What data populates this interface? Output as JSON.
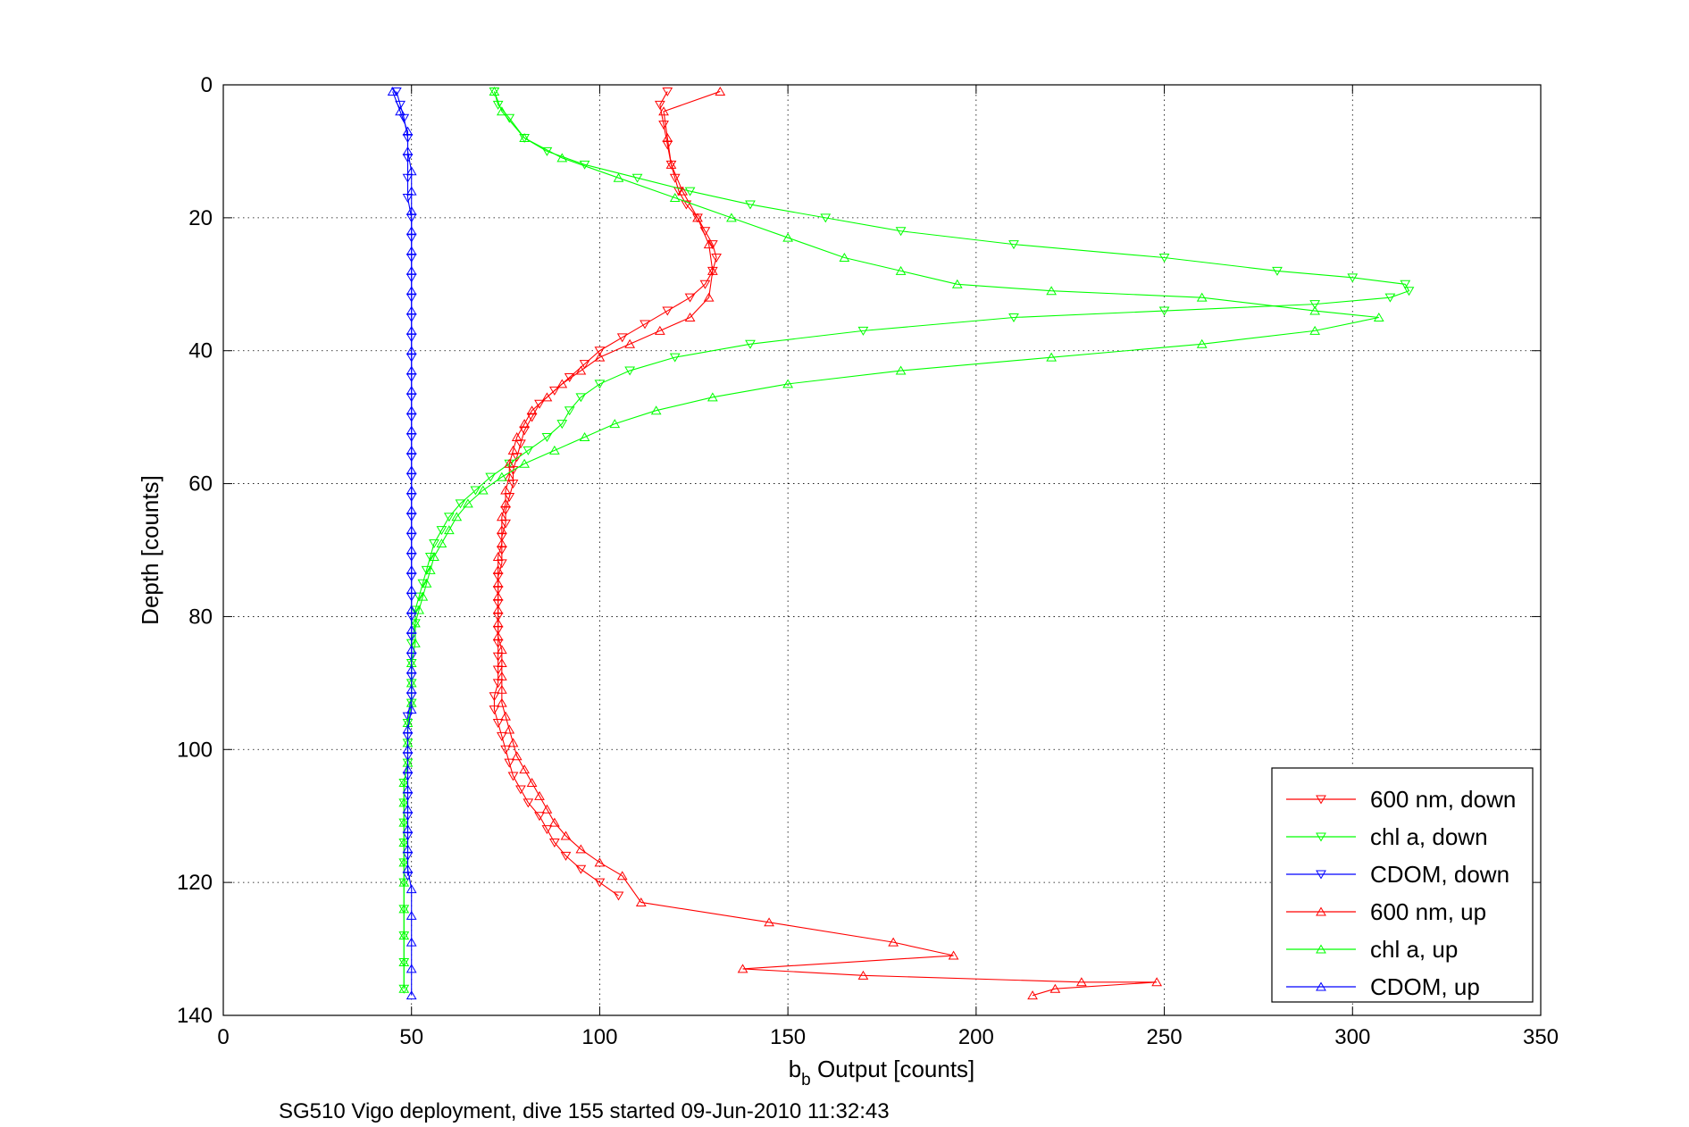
{
  "chart_data": {
    "type": "line",
    "caption": "SG510 Vigo deployment, dive 155 started 09-Jun-2010 11:32:43",
    "xlabel_main": "b",
    "xlabel_sub": "b",
    "xlabel_rest": " Output [counts]",
    "ylabel": "Depth [counts]",
    "xlim": [
      0,
      350
    ],
    "ylim": [
      0,
      140
    ],
    "y_reversed": true,
    "grid": true,
    "legend_placement": "bottom-right",
    "xticks": [
      "0",
      "50",
      "100",
      "150",
      "200",
      "250",
      "300",
      "350"
    ],
    "yticks": [
      "0",
      "20",
      "40",
      "60",
      "80",
      "100",
      "120",
      "140"
    ],
    "colors": {
      "red": "#ff0000",
      "green": "#00ff00",
      "blue": "#0000ff"
    },
    "series": [
      {
        "name": "600 nm, down",
        "color": "#ff0000",
        "marker": "triangle-down",
        "points": [
          [
            118,
            1
          ],
          [
            116,
            3
          ],
          [
            117,
            6
          ],
          [
            118,
            9
          ],
          [
            119,
            12
          ],
          [
            120,
            14
          ],
          [
            121,
            16
          ],
          [
            123,
            18
          ],
          [
            126,
            20
          ],
          [
            128,
            22
          ],
          [
            130,
            24
          ],
          [
            131,
            26
          ],
          [
            130,
            28
          ],
          [
            128,
            30
          ],
          [
            124,
            32
          ],
          [
            118,
            34
          ],
          [
            112,
            36
          ],
          [
            106,
            38
          ],
          [
            100,
            40
          ],
          [
            96,
            42
          ],
          [
            92,
            44
          ],
          [
            88,
            46
          ],
          [
            84,
            48
          ],
          [
            82,
            50
          ],
          [
            80,
            52
          ],
          [
            79,
            54
          ],
          [
            78,
            56
          ],
          [
            77,
            58
          ],
          [
            77,
            60
          ],
          [
            76,
            62
          ],
          [
            75,
            64
          ],
          [
            75,
            66
          ],
          [
            74,
            68
          ],
          [
            74,
            70
          ],
          [
            74,
            72
          ],
          [
            73,
            74
          ],
          [
            73,
            76
          ],
          [
            73,
            78
          ],
          [
            73,
            80
          ],
          [
            73,
            82
          ],
          [
            73,
            84
          ],
          [
            73,
            86
          ],
          [
            73,
            88
          ],
          [
            73,
            90
          ],
          [
            72,
            92
          ],
          [
            72,
            94
          ],
          [
            73,
            96
          ],
          [
            74,
            98
          ],
          [
            75,
            100
          ],
          [
            76,
            102
          ],
          [
            77,
            104
          ],
          [
            79,
            106
          ],
          [
            81,
            108
          ],
          [
            84,
            110
          ],
          [
            86,
            112
          ],
          [
            88,
            114
          ],
          [
            91,
            116
          ],
          [
            95,
            118
          ],
          [
            100,
            120
          ],
          [
            105,
            122
          ]
        ]
      },
      {
        "name": "chl a, down",
        "color": "#00ff00",
        "marker": "triangle-down",
        "points": [
          [
            72,
            1
          ],
          [
            73,
            3
          ],
          [
            76,
            5
          ],
          [
            80,
            8
          ],
          [
            86,
            10
          ],
          [
            96,
            12
          ],
          [
            110,
            14
          ],
          [
            124,
            16
          ],
          [
            140,
            18
          ],
          [
            160,
            20
          ],
          [
            180,
            22
          ],
          [
            210,
            24
          ],
          [
            250,
            26
          ],
          [
            280,
            28
          ],
          [
            300,
            29
          ],
          [
            314,
            30
          ],
          [
            315,
            31
          ],
          [
            310,
            32
          ],
          [
            290,
            33
          ],
          [
            250,
            34
          ],
          [
            210,
            35
          ],
          [
            170,
            37
          ],
          [
            140,
            39
          ],
          [
            120,
            41
          ],
          [
            108,
            43
          ],
          [
            100,
            45
          ],
          [
            95,
            47
          ],
          [
            92,
            49
          ],
          [
            90,
            51
          ],
          [
            86,
            53
          ],
          [
            81,
            55
          ],
          [
            76,
            57
          ],
          [
            71,
            59
          ],
          [
            67,
            61
          ],
          [
            63,
            63
          ],
          [
            60,
            65
          ],
          [
            58,
            67
          ],
          [
            56,
            69
          ],
          [
            55,
            71
          ],
          [
            54,
            73
          ],
          [
            53,
            75
          ],
          [
            52,
            77
          ],
          [
            51,
            79
          ],
          [
            51,
            81
          ],
          [
            50,
            84
          ],
          [
            50,
            87
          ],
          [
            50,
            90
          ],
          [
            50,
            93
          ],
          [
            49,
            96
          ],
          [
            49,
            99
          ],
          [
            49,
            102
          ],
          [
            48,
            105
          ],
          [
            48,
            108
          ],
          [
            48,
            111
          ],
          [
            48,
            114
          ],
          [
            48,
            117
          ],
          [
            48,
            120
          ],
          [
            48,
            124
          ],
          [
            48,
            128
          ],
          [
            48,
            132
          ],
          [
            48,
            136
          ]
        ]
      },
      {
        "name": "CDOM, down",
        "color": "#0000ff",
        "marker": "triangle-down",
        "points": [
          [
            46,
            1
          ],
          [
            47,
            3
          ],
          [
            48,
            5
          ],
          [
            49,
            8
          ],
          [
            49,
            11
          ],
          [
            49,
            14
          ],
          [
            49,
            17
          ],
          [
            50,
            20
          ],
          [
            50,
            23
          ],
          [
            50,
            26
          ],
          [
            50,
            29
          ],
          [
            50,
            32
          ],
          [
            50,
            35
          ],
          [
            50,
            38
          ],
          [
            50,
            41
          ],
          [
            50,
            44
          ],
          [
            50,
            47
          ],
          [
            50,
            50
          ],
          [
            50,
            53
          ],
          [
            50,
            56
          ],
          [
            50,
            59
          ],
          [
            50,
            62
          ],
          [
            50,
            65
          ],
          [
            50,
            68
          ],
          [
            50,
            71
          ],
          [
            50,
            74
          ],
          [
            50,
            77
          ],
          [
            50,
            80
          ],
          [
            50,
            83
          ],
          [
            50,
            86
          ],
          [
            50,
            89
          ],
          [
            50,
            92
          ],
          [
            49,
            95
          ],
          [
            49,
            98
          ],
          [
            49,
            101
          ],
          [
            49,
            104
          ],
          [
            49,
            107
          ],
          [
            49,
            110
          ],
          [
            49,
            113
          ],
          [
            49,
            116
          ],
          [
            49,
            119
          ]
        ]
      },
      {
        "name": "600 nm, up",
        "color": "#ff0000",
        "marker": "triangle-up",
        "points": [
          [
            132,
            1
          ],
          [
            117,
            4
          ],
          [
            118,
            8
          ],
          [
            119,
            12
          ],
          [
            122,
            16
          ],
          [
            126,
            20
          ],
          [
            129,
            24
          ],
          [
            130,
            28
          ],
          [
            129,
            32
          ],
          [
            124,
            35
          ],
          [
            116,
            37
          ],
          [
            108,
            39
          ],
          [
            100,
            41
          ],
          [
            95,
            43
          ],
          [
            90,
            45
          ],
          [
            86,
            47
          ],
          [
            82,
            49
          ],
          [
            80,
            51
          ],
          [
            78,
            53
          ],
          [
            77,
            55
          ],
          [
            76,
            57
          ],
          [
            76,
            59
          ],
          [
            75,
            61
          ],
          [
            75,
            63
          ],
          [
            74,
            65
          ],
          [
            74,
            67
          ],
          [
            74,
            69
          ],
          [
            73,
            71
          ],
          [
            73,
            73
          ],
          [
            73,
            75
          ],
          [
            73,
            77
          ],
          [
            73,
            79
          ],
          [
            73,
            81
          ],
          [
            73,
            83
          ],
          [
            74,
            85
          ],
          [
            74,
            87
          ],
          [
            74,
            89
          ],
          [
            74,
            91
          ],
          [
            74,
            93
          ],
          [
            75,
            95
          ],
          [
            76,
            97
          ],
          [
            77,
            99
          ],
          [
            78,
            101
          ],
          [
            80,
            103
          ],
          [
            82,
            105
          ],
          [
            84,
            107
          ],
          [
            86,
            109
          ],
          [
            88,
            111
          ],
          [
            91,
            113
          ],
          [
            95,
            115
          ],
          [
            100,
            117
          ],
          [
            106,
            119
          ],
          [
            111,
            123
          ],
          [
            145,
            126
          ],
          [
            178,
            129
          ],
          [
            194,
            131
          ],
          [
            138,
            133
          ],
          [
            170,
            134
          ],
          [
            228,
            135
          ],
          [
            248,
            135
          ],
          [
            221,
            136
          ],
          [
            215,
            137
          ]
        ]
      },
      {
        "name": "chl a, up",
        "color": "#00ff00",
        "marker": "triangle-up",
        "points": [
          [
            72,
            1
          ],
          [
            74,
            4
          ],
          [
            80,
            8
          ],
          [
            90,
            11
          ],
          [
            105,
            14
          ],
          [
            120,
            17
          ],
          [
            135,
            20
          ],
          [
            150,
            23
          ],
          [
            165,
            26
          ],
          [
            180,
            28
          ],
          [
            195,
            30
          ],
          [
            220,
            31
          ],
          [
            260,
            32
          ],
          [
            290,
            34
          ],
          [
            307,
            35
          ],
          [
            290,
            37
          ],
          [
            260,
            39
          ],
          [
            220,
            41
          ],
          [
            180,
            43
          ],
          [
            150,
            45
          ],
          [
            130,
            47
          ],
          [
            115,
            49
          ],
          [
            104,
            51
          ],
          [
            96,
            53
          ],
          [
            88,
            55
          ],
          [
            80,
            57
          ],
          [
            74,
            59
          ],
          [
            69,
            61
          ],
          [
            65,
            63
          ],
          [
            62,
            65
          ],
          [
            60,
            67
          ],
          [
            58,
            69
          ],
          [
            56,
            71
          ],
          [
            55,
            73
          ],
          [
            54,
            75
          ],
          [
            53,
            77
          ],
          [
            52,
            79
          ],
          [
            51,
            81
          ],
          [
            51,
            84
          ],
          [
            50,
            87
          ],
          [
            50,
            90
          ],
          [
            50,
            93
          ],
          [
            49,
            96
          ],
          [
            49,
            99
          ],
          [
            49,
            102
          ],
          [
            48,
            105
          ],
          [
            48,
            108
          ],
          [
            48,
            111
          ],
          [
            48,
            114
          ],
          [
            48,
            117
          ],
          [
            48,
            120
          ],
          [
            48,
            124
          ],
          [
            48,
            128
          ],
          [
            48,
            132
          ],
          [
            48,
            136
          ]
        ]
      },
      {
        "name": "CDOM, up",
        "color": "#0000ff",
        "marker": "triangle-up",
        "points": [
          [
            45,
            1
          ],
          [
            47,
            4
          ],
          [
            49,
            7
          ],
          [
            49,
            10
          ],
          [
            50,
            13
          ],
          [
            50,
            16
          ],
          [
            50,
            19
          ],
          [
            50,
            22
          ],
          [
            50,
            25
          ],
          [
            50,
            28
          ],
          [
            50,
            31
          ],
          [
            50,
            34
          ],
          [
            50,
            37
          ],
          [
            50,
            40
          ],
          [
            50,
            43
          ],
          [
            50,
            46
          ],
          [
            50,
            49
          ],
          [
            50,
            52
          ],
          [
            50,
            55
          ],
          [
            50,
            58
          ],
          [
            50,
            61
          ],
          [
            50,
            64
          ],
          [
            50,
            67
          ],
          [
            50,
            70
          ],
          [
            50,
            73
          ],
          [
            50,
            76
          ],
          [
            50,
            79
          ],
          [
            50,
            82
          ],
          [
            50,
            85
          ],
          [
            50,
            88
          ],
          [
            50,
            91
          ],
          [
            50,
            94
          ],
          [
            49,
            97
          ],
          [
            49,
            100
          ],
          [
            49,
            103
          ],
          [
            49,
            106
          ],
          [
            49,
            109
          ],
          [
            49,
            112
          ],
          [
            49,
            115
          ],
          [
            49,
            118
          ],
          [
            50,
            121
          ],
          [
            50,
            125
          ],
          [
            50,
            129
          ],
          [
            50,
            133
          ],
          [
            50,
            137
          ]
        ]
      }
    ]
  }
}
